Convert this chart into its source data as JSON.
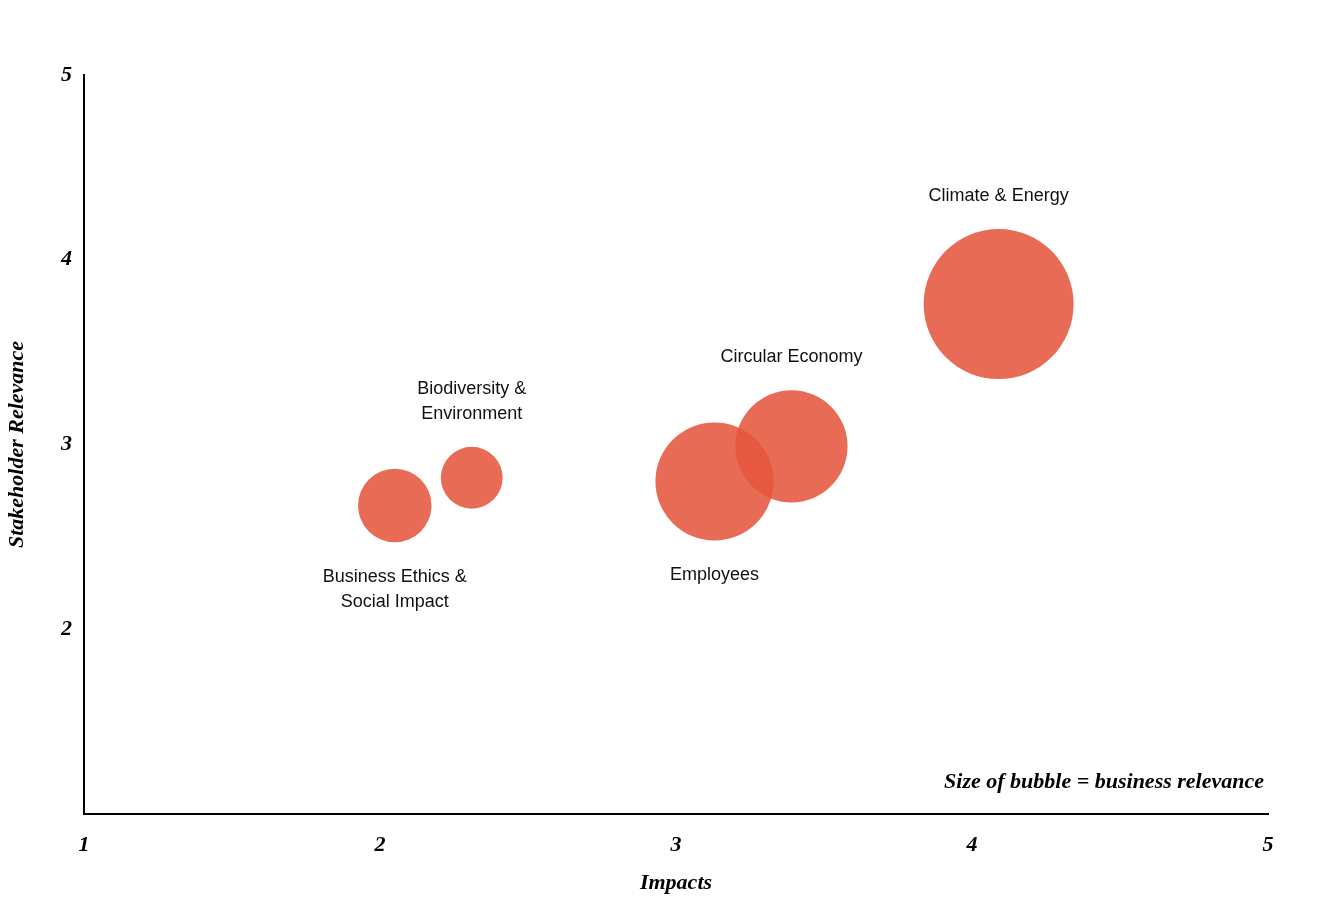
{
  "chart_data": {
    "type": "bubble",
    "xlabel": "Impacts",
    "ylabel": "Stakeholder Relevance",
    "series": [
      {
        "name": "Business Ethics & Social Impact",
        "color": "#e5573d",
        "x": [
          2.05
        ],
        "values": [
          2.67
        ],
        "sizes": [
          0.24
        ]
      },
      {
        "name": "Biodiversity & Environment",
        "color": "#e5573d",
        "x": [
          2.31
        ],
        "values": [
          2.82
        ],
        "sizes": [
          0.17
        ]
      },
      {
        "name": "Employees",
        "color": "#e5573d",
        "x": [
          3.13
        ],
        "values": [
          2.8
        ],
        "sizes": [
          0.62
        ]
      },
      {
        "name": "Circular Economy",
        "color": "#e5573d",
        "x": [
          3.39
        ],
        "values": [
          2.99
        ],
        "sizes": [
          0.56
        ]
      },
      {
        "name": "Climate & Energy",
        "color": "#e5573d",
        "x": [
          4.09
        ],
        "values": [
          3.76
        ],
        "sizes": [
          1
        ]
      }
    ],
    "xlim": [
      1,
      5
    ],
    "xticks": [
      1,
      2,
      3,
      4,
      5
    ],
    "ylim": [
      1,
      5
    ],
    "yticks": [
      2,
      3,
      4,
      5
    ],
    "grid": false,
    "legend": false,
    "annotations": [
      "Size of bubble = business relevance"
    ]
  }
}
